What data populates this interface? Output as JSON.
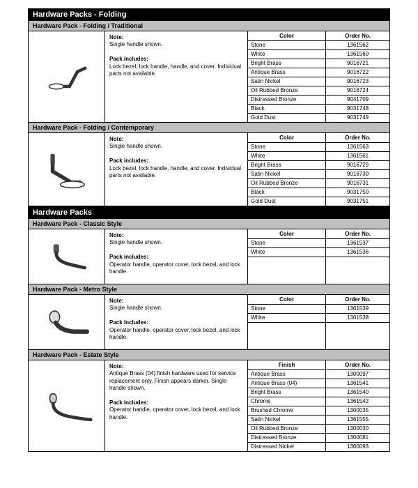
{
  "sections": [
    {
      "title": "Hardware Packs - Folding",
      "subsections": [
        {
          "title": "Hardware Pack - Folding / Traditional",
          "note_label": "Note:",
          "note": "Single handle shown.",
          "includes_label": "Pack includes:",
          "includes": "Lock bezel, lock handle, handle, and cover. Individual parts not available.",
          "color_header": "Color",
          "order_header": "Order No.",
          "icon": "handle-folding-traditional",
          "rows": [
            {
              "color": "Stone",
              "order": "1361562"
            },
            {
              "color": "White",
              "order": "1361560"
            },
            {
              "color": "Bright Brass",
              "order": "9016721"
            },
            {
              "color": "Antique Brass",
              "order": "9016722"
            },
            {
              "color": "Satin Nickel",
              "order": "9016723"
            },
            {
              "color": "Oil Rubbed Bronze",
              "order": "9016724"
            },
            {
              "color": "Distressed Bronze",
              "order": "9041709"
            },
            {
              "color": "Black",
              "order": "9031748"
            },
            {
              "color": "Gold Dust",
              "order": "9031749"
            }
          ]
        },
        {
          "title": "Hardware Pack - Folding / Contemporary",
          "note_label": "Note:",
          "note": "Single handle shown.",
          "includes_label": "Pack includes:",
          "includes": "Lock bezel, lock handle, handle, and cover. Individual parts not available.",
          "color_header": "Color",
          "order_header": "Order No.",
          "icon": "handle-folding-contemporary",
          "rows": [
            {
              "color": "Stone",
              "order": "1361563"
            },
            {
              "color": "White",
              "order": "1361561"
            },
            {
              "color": "Bright Brass",
              "order": "9016729"
            },
            {
              "color": "Satin Nickel",
              "order": "9016730"
            },
            {
              "color": "Oil Rubbed Bronze",
              "order": "9016731"
            },
            {
              "color": "Black",
              "order": "9031750"
            },
            {
              "color": "Gold Dust",
              "order": "9031751"
            }
          ]
        }
      ]
    },
    {
      "title": "Hardware Packs",
      "subsections": [
        {
          "title": "Hardware Pack - Classic Style",
          "note_label": "Note:",
          "note": "Single handle shown.",
          "includes_label": "Pack includes:",
          "includes": "Operator handle, operator cover, lock bezel, and lock handle.",
          "color_header": "Color",
          "order_header": "Order No.",
          "icon": "handle-classic",
          "min_rows": 5,
          "rows": [
            {
              "color": "Stone",
              "order": "1361537"
            },
            {
              "color": "White",
              "order": "1361536"
            }
          ]
        },
        {
          "title": "Hardware Pack - Metro Style",
          "note_label": "Note:",
          "note": "Single handle shown.",
          "includes_label": "Pack includes:",
          "includes": "Operator handle, operator cover, lock bezel, and lock handle.",
          "color_header": "Color",
          "order_header": "Order No.",
          "icon": "handle-metro",
          "min_rows": 5,
          "rows": [
            {
              "color": "Stone",
              "order": "1361539"
            },
            {
              "color": "White",
              "order": "1361538"
            }
          ]
        },
        {
          "title": "Hardware Pack - Estate Style",
          "note_label": "Note:",
          "note": "Antique Brass (04) finish hardware used for service replacement only. Finish appears darker. Single handle shown.",
          "includes_label": "Pack includes:",
          "includes": "Operator handle, operator cover, lock bezel, and lock handle.",
          "color_header": "Finish",
          "order_header": "Order No.",
          "icon": "handle-estate",
          "rows": [
            {
              "color": "Antique Brass",
              "order": "1300097"
            },
            {
              "color": "Antique Brass (04)",
              "order": "1361541"
            },
            {
              "color": "Bright Brass",
              "order": "1361540"
            },
            {
              "color": "Chrome",
              "order": "1361542"
            },
            {
              "color": "Brushed Chrome",
              "order": "1300035"
            },
            {
              "color": "Satin Nickel",
              "order": "1361555"
            },
            {
              "color": "Oil Rubbed Bronze",
              "order": "1300030"
            },
            {
              "color": "Distressed Bronze",
              "order": "1300081"
            },
            {
              "color": "Distressed Nickel",
              "order": "1300093"
            }
          ]
        }
      ]
    }
  ],
  "colors": {
    "section_bg": "#000000",
    "section_fg": "#ffffff",
    "sub_bg": "#bfbfbf",
    "border": "#000000"
  }
}
